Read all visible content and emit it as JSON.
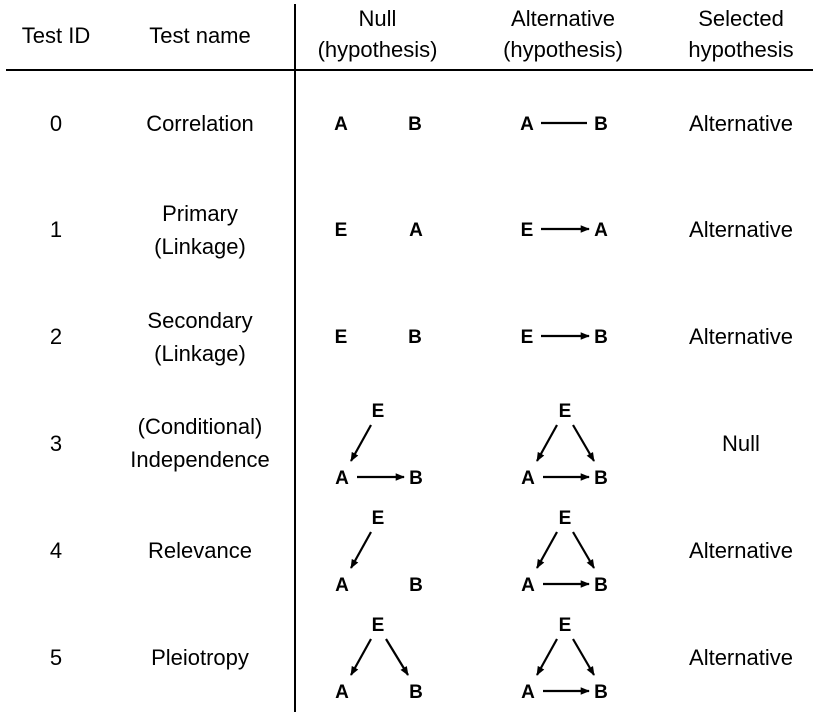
{
  "headers": {
    "test_id": "Test ID",
    "test_name": "Test name",
    "null_l1": "Null",
    "null_l2": "(hypothesis)",
    "alt_l1": "Alternative",
    "alt_l2": "(hypothesis)",
    "sel_l1": "Selected",
    "sel_l2": "hypothesis"
  },
  "rows": [
    {
      "id": "0",
      "name_l1": "Correlation",
      "name_l2": "",
      "selected": "Alternative"
    },
    {
      "id": "1",
      "name_l1": "Primary",
      "name_l2": "(Linkage)",
      "selected": "Alternative"
    },
    {
      "id": "2",
      "name_l1": "Secondary",
      "name_l2": "(Linkage)",
      "selected": "Alternative"
    },
    {
      "id": "3",
      "name_l1": "(Conditional)",
      "name_l2": "Independence",
      "selected": "Null"
    },
    {
      "id": "4",
      "name_l1": "Relevance",
      "name_l2": "",
      "selected": "Alternative"
    },
    {
      "id": "5",
      "name_l1": "Pleiotropy",
      "name_l2": "",
      "selected": "Alternative"
    }
  ],
  "node_labels": {
    "a": "A",
    "b": "B",
    "e": "E"
  },
  "diagrams": {
    "r0_null": {
      "nodes": [
        "A",
        "B"
      ],
      "edges": []
    },
    "r0_alt": {
      "nodes": [
        "A",
        "B"
      ],
      "edges": [
        "A-B (undirected)"
      ]
    },
    "r1_null": {
      "nodes": [
        "E",
        "A"
      ],
      "edges": []
    },
    "r1_alt": {
      "nodes": [
        "E",
        "A"
      ],
      "edges": [
        "E->A"
      ]
    },
    "r2_null": {
      "nodes": [
        "E",
        "B"
      ],
      "edges": []
    },
    "r2_alt": {
      "nodes": [
        "E",
        "B"
      ],
      "edges": [
        "E->B"
      ]
    },
    "r3_null": {
      "nodes": [
        "E",
        "A",
        "B"
      ],
      "edges": [
        "E->A",
        "A->B"
      ]
    },
    "r3_alt": {
      "nodes": [
        "E",
        "A",
        "B"
      ],
      "edges": [
        "E->A",
        "E->B",
        "A->B"
      ]
    },
    "r4_null": {
      "nodes": [
        "E",
        "A",
        "B"
      ],
      "edges": [
        "E->A"
      ]
    },
    "r4_alt": {
      "nodes": [
        "E",
        "A",
        "B"
      ],
      "edges": [
        "E->A",
        "E->B",
        "A->B"
      ]
    },
    "r5_null": {
      "nodes": [
        "E",
        "A",
        "B"
      ],
      "edges": [
        "E->A",
        "E->B"
      ]
    },
    "r5_alt": {
      "nodes": [
        "E",
        "A",
        "B"
      ],
      "edges": [
        "E->A",
        "E->B",
        "A->B"
      ]
    }
  }
}
